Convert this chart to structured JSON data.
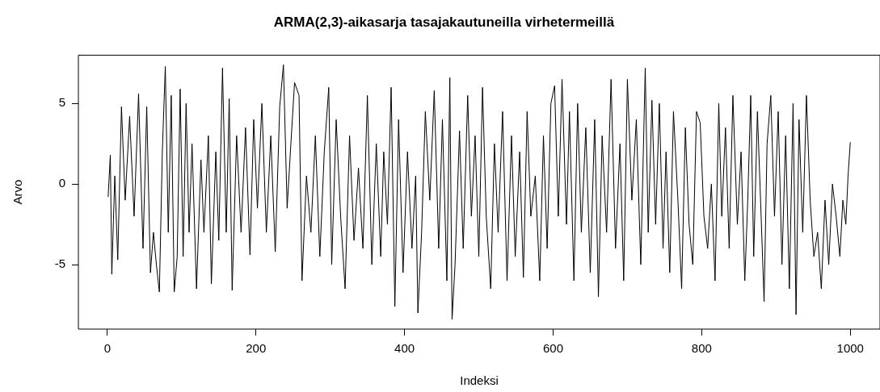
{
  "chart_data": {
    "type": "line",
    "title": "ARMA(2,3)-aikasarja tasajakautuneilla virhetermeillä",
    "xlabel": "Indeksi",
    "ylabel": "Arvo",
    "x": [
      1,
      4,
      6,
      10,
      14,
      19,
      24,
      30,
      36,
      42,
      48,
      53,
      58,
      62,
      66,
      70,
      74,
      78,
      82,
      86,
      90,
      94,
      98,
      102,
      106,
      110,
      114,
      120,
      126,
      130,
      136,
      140,
      146,
      150,
      155,
      160,
      164,
      168,
      174,
      180,
      186,
      192,
      197,
      202,
      208,
      214,
      220,
      226,
      232,
      237,
      242,
      247,
      252,
      258,
      262,
      268,
      274,
      280,
      286,
      292,
      298,
      302,
      308,
      314,
      320,
      326,
      332,
      338,
      344,
      350,
      356,
      362,
      368,
      372,
      377,
      382,
      387,
      392,
      398,
      404,
      410,
      415,
      418,
      423,
      428,
      434,
      440,
      446,
      451,
      457,
      461,
      464,
      468,
      474,
      479,
      485,
      490,
      495,
      500,
      505,
      510,
      516,
      521,
      526,
      532,
      538,
      544,
      549,
      555,
      560,
      565,
      570,
      576,
      582,
      587,
      592,
      597,
      602,
      607,
      612,
      618,
      622,
      628,
      633,
      638,
      644,
      650,
      656,
      661,
      666,
      672,
      678,
      684,
      690,
      695,
      700,
      706,
      712,
      718,
      724,
      728,
      733,
      738,
      743,
      748,
      752,
      757,
      762,
      768,
      773,
      778,
      783,
      788,
      793,
      798,
      803,
      808,
      813,
      818,
      823,
      827,
      832,
      837,
      842,
      848,
      853,
      858,
      862,
      866,
      870,
      875,
      880,
      884,
      888,
      893,
      898,
      903,
      908,
      913,
      918,
      923,
      927,
      931,
      936,
      941,
      946,
      951,
      956,
      961,
      966,
      971,
      976,
      981,
      986,
      990,
      994,
      997,
      1000
    ],
    "series": [
      {
        "color": "#000000",
        "values": [
          -0.8,
          1.8,
          -5.6,
          0.5,
          -4.7,
          4.8,
          -1,
          4.2,
          -2,
          5.6,
          -4,
          4.8,
          -5.5,
          -3,
          -5,
          -6.7,
          2,
          7.3,
          -3,
          5.5,
          -6.7,
          -4.5,
          5.9,
          -4.5,
          5,
          -3,
          2.5,
          -6.5,
          1.5,
          -3,
          3,
          -6.2,
          2,
          -3.5,
          7.2,
          -3,
          5.3,
          -6.6,
          3,
          -3,
          3.5,
          -4.4,
          4,
          -1.5,
          5,
          -3,
          3,
          -4.2,
          4.8,
          7.4,
          -1.5,
          2.5,
          6.3,
          5.5,
          -6,
          0.5,
          -3,
          3,
          -4.5,
          2,
          6,
          -5,
          4,
          -2,
          -6.5,
          3,
          -3.5,
          1,
          -4,
          5.5,
          -5,
          2.5,
          -4.5,
          2,
          -2.5,
          6,
          -7.6,
          4,
          -5.5,
          2,
          -4,
          0.5,
          -8,
          -3,
          4.5,
          -1,
          5.8,
          -4,
          4,
          -6,
          6.6,
          -8.4,
          -5,
          3.3,
          -4,
          5.5,
          -2,
          3,
          -4.5,
          6,
          -2,
          -6.5,
          2.5,
          -3,
          4.5,
          -6,
          3,
          -4.5,
          2,
          -5.8,
          4.5,
          -2,
          0.5,
          -6,
          3,
          -4,
          5,
          6.1,
          -2,
          6.5,
          -2.5,
          4.5,
          -6,
          5,
          -3,
          3.5,
          -5.5,
          4,
          -7,
          3,
          -3,
          6.5,
          -4,
          2.5,
          -6,
          6.5,
          -1,
          4,
          -5,
          7.2,
          -3,
          5.2,
          -2.5,
          5,
          -4,
          2,
          -5.5,
          4.5,
          -1,
          -6.5,
          3.5,
          -2.5,
          -5,
          4.5,
          3.8,
          -2,
          -4,
          0,
          -6,
          5,
          -2,
          3.5,
          -4,
          5.5,
          -2.5,
          2,
          -6,
          -1,
          5.5,
          -4.5,
          4.5,
          -2,
          -7.3,
          2.5,
          5.5,
          -2,
          4.5,
          -5,
          3,
          -6.5,
          5,
          -8.1,
          4,
          -3,
          5.5,
          -1,
          -4.5,
          -3,
          -6.5,
          -1,
          -5,
          0,
          -2,
          -4.5,
          -1,
          -2.5,
          0.5,
          2.6
        ]
      }
    ],
    "xlim": [
      -39,
      1040
    ],
    "ylim": [
      -9,
      8
    ],
    "xticks": [
      0,
      200,
      400,
      600,
      800,
      1000
    ],
    "yticks": [
      -5,
      0,
      5
    ],
    "grid": false,
    "legend": false,
    "marker": "none",
    "line_style": "solid"
  }
}
